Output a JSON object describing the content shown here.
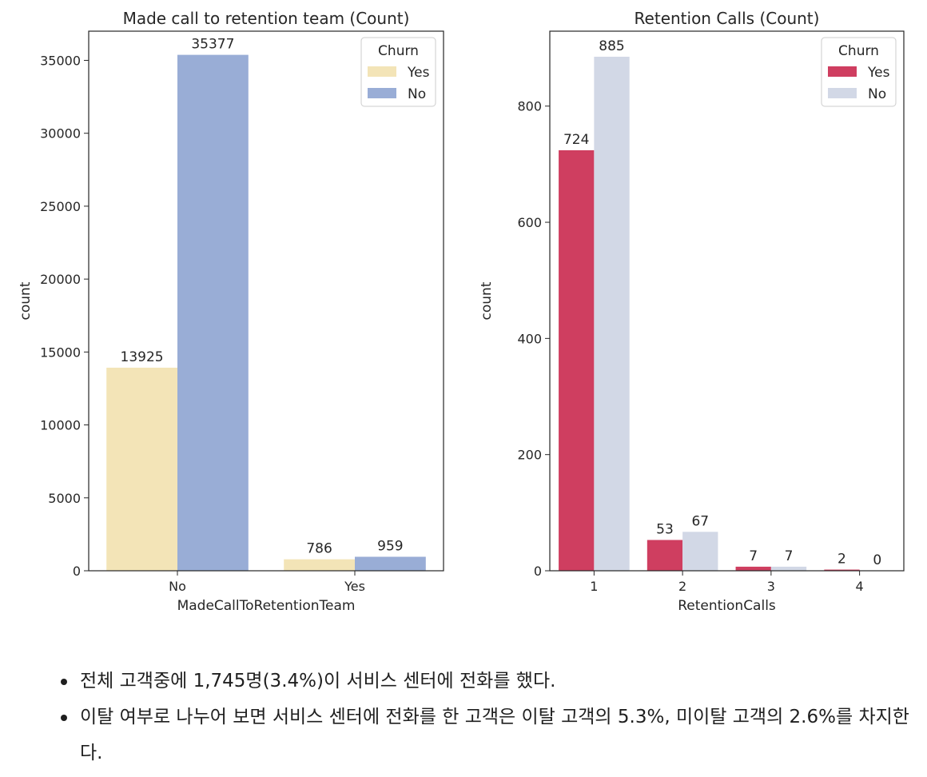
{
  "chart_data": [
    {
      "type": "bar",
      "title": "Made call to retention team (Count)",
      "xlabel": "MadeCallToRetentionTeam",
      "ylabel": "count",
      "categories": [
        "No",
        "Yes"
      ],
      "series": [
        {
          "name": "Yes",
          "color": "#f3e4b7",
          "values": [
            13925,
            786
          ]
        },
        {
          "name": "No",
          "color": "#99add6",
          "values": [
            35377,
            959
          ]
        }
      ],
      "ylim": [
        0,
        37000
      ],
      "yticks": [
        0,
        5000,
        10000,
        15000,
        20000,
        25000,
        30000,
        35000
      ],
      "legend": {
        "title": "Churn",
        "placement": "top-right"
      },
      "grid": false
    },
    {
      "type": "bar",
      "title": "Retention Calls (Count)",
      "xlabel": "RetentionCalls",
      "ylabel": "count",
      "categories": [
        "1",
        "2",
        "3",
        "4"
      ],
      "series": [
        {
          "name": "Yes",
          "color": "#cf3e60",
          "values": [
            724,
            53,
            7,
            2
          ]
        },
        {
          "name": "No",
          "color": "#d2d8e6",
          "values": [
            885,
            67,
            7,
            0
          ]
        }
      ],
      "ylim": [
        0,
        929
      ],
      "yticks": [
        0,
        200,
        400,
        600,
        800
      ],
      "legend": {
        "title": "Churn",
        "placement": "top-right"
      },
      "grid": false
    }
  ],
  "notes": [
    "전체 고객중에 1,745명(3.4%)이 서비스 센터에 전화를 했다.",
    "이탈 여부로 나누어 보면 서비스 센터에 전화를 한 고객은 이탈 고객의 5.3%, 미이탈 고객의 2.6%를 차지한다."
  ]
}
